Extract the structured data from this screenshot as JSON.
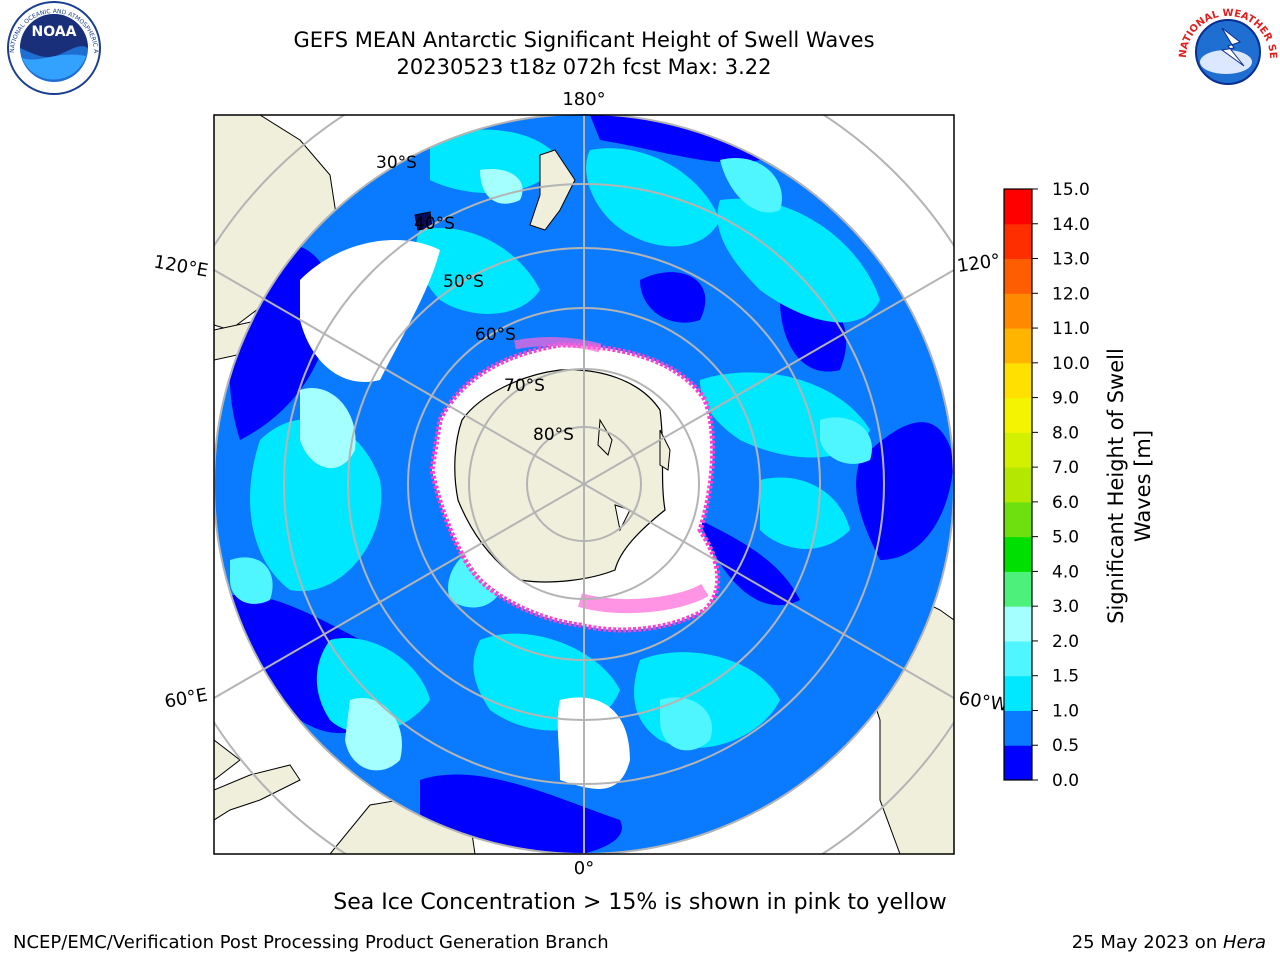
{
  "title": {
    "line1": "GEFS MEAN Antarctic Significant Height of Swell Waves",
    "line2": "20230523 t18z 072h fcst   Max: 3.22"
  },
  "map": {
    "projection": "south-polar-stereographic",
    "meridian_labels": {
      "top": "180°",
      "bottom": "0°",
      "upper_left": "120°E",
      "lower_left": "60°E",
      "upper_right": "120°",
      "lower_right": "60°W"
    },
    "latitude_labels": [
      "30°S",
      "40°S",
      "50°S",
      "60°S",
      "70°S",
      "80°S"
    ],
    "colors": {
      "land": "#efefdc",
      "ice": "#ffffff",
      "sea_ice_edge": "#ff3fcf",
      "grid": "#b4b4b4"
    }
  },
  "colorbar": {
    "label_line1": "Significant Height of Swell",
    "label_line2": "Waves [m]",
    "ticks": [
      "0.0",
      "0.5",
      "1.0",
      "1.5",
      "2.0",
      "3.0",
      "4.0",
      "5.0",
      "6.0",
      "7.0",
      "8.0",
      "9.0",
      "10.0",
      "11.0",
      "12.0",
      "13.0",
      "14.0",
      "15.0"
    ],
    "colors": [
      "#0000ff",
      "#0a7bff",
      "#00e8ff",
      "#4ff6ff",
      "#a4ffff",
      "#4cf07a",
      "#00e000",
      "#6ee010",
      "#b4e800",
      "#d2f000",
      "#f4f400",
      "#ffe000",
      "#ffb400",
      "#ff8a00",
      "#ff5e00",
      "#ff2e00",
      "#ff0000"
    ]
  },
  "sea_ice_note": "Sea Ice Concentration > 15% is shown in pink to yellow",
  "footer": {
    "left": "NCEP/EMC/Verification Post Processing Product Generation Branch",
    "right_prefix": "25 May 2023 on ",
    "right_machine": "Hera"
  },
  "logos": {
    "left": {
      "name": "noaa-logo",
      "text": "NOAA",
      "ring_text": "NATIONAL OCEANIC AND ATMOSPHERIC ADMINISTRATION · U.S. DEPARTMENT OF COMMERCE"
    },
    "right": {
      "name": "nws-logo",
      "ring_text": "NATIONAL WEATHER SERVICE"
    }
  }
}
